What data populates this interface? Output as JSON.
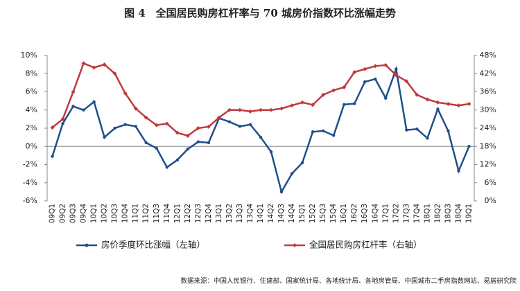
{
  "chart_data": {
    "type": "line",
    "title": "图 4　全国居民购房杠杆率与 70 城房价指数环比涨幅走势",
    "source": "数据来源：中国人民银行、住建部、国家统计局、各地统计局、各地房管局、中国城市二手房指数网站、易居研究院",
    "categories": [
      "09Q1",
      "09Q2",
      "09Q3",
      "09Q4",
      "10Q1",
      "10Q2",
      "10Q3",
      "10Q4",
      "11Q1",
      "11Q2",
      "11Q3",
      "11Q4",
      "12Q1",
      "12Q2",
      "12Q3",
      "12Q4",
      "13Q1",
      "13Q2",
      "13Q3",
      "13Q4",
      "14Q1",
      "14Q2",
      "14Q3",
      "14Q4",
      "15Q1",
      "15Q2",
      "15Q3",
      "15Q4",
      "16Q1",
      "16Q2",
      "16Q3",
      "16Q4",
      "17Q1",
      "17Q2",
      "17Q3",
      "17Q4",
      "18Q1",
      "18Q2",
      "18Q3",
      "18Q4",
      "19Q1"
    ],
    "series": [
      {
        "name": "房价季度环比涨幅（左轴）",
        "color": "#1f4e8c",
        "axis": "y",
        "values": [
          -1.1,
          2.5,
          4.4,
          4.0,
          4.9,
          1.0,
          2.0,
          2.4,
          2.2,
          0.4,
          -0.2,
          -2.3,
          -1.5,
          -0.3,
          0.5,
          0.4,
          3.1,
          2.7,
          2.2,
          2.4,
          1.0,
          -0.6,
          -5.0,
          -3.0,
          -1.8,
          1.6,
          1.7,
          1.2,
          4.6,
          4.7,
          7.1,
          7.4,
          5.3,
          8.5,
          1.8,
          1.9,
          0.9,
          4.1,
          1.7,
          -2.7,
          0.0
        ]
      },
      {
        "name": "全国居民购房杠杆率（右轴）",
        "color": "#c0393b",
        "axis": "y2",
        "values": [
          24.2,
          27,
          36,
          45.4,
          44,
          45,
          42,
          35.5,
          30.5,
          27.5,
          25,
          25.5,
          22.5,
          21.5,
          24,
          24.5,
          27.5,
          30,
          30,
          29.5,
          30,
          30,
          30.5,
          31.5,
          32.5,
          31.7,
          35,
          36.5,
          37.5,
          42.5,
          43.5,
          44.5,
          44.8,
          41.5,
          39.5,
          35,
          33.5,
          32.5,
          32,
          31.5,
          32
        ]
      }
    ],
    "ylim": [
      -6,
      10
    ],
    "yticks": [
      {
        "value": -6,
        "label": "-6%"
      },
      {
        "value": -4,
        "label": "-4%"
      },
      {
        "value": -2,
        "label": "-2%"
      },
      {
        "value": 0,
        "label": "0%"
      },
      {
        "value": 2,
        "label": "2%"
      },
      {
        "value": 4,
        "label": "4%"
      },
      {
        "value": 6,
        "label": "6%"
      },
      {
        "value": 8,
        "label": "8%"
      },
      {
        "value": 10,
        "label": "10%"
      }
    ],
    "y2lim": [
      0,
      48
    ],
    "y2ticks": [
      {
        "value": 0,
        "label": "0%"
      },
      {
        "value": 6,
        "label": "6%"
      },
      {
        "value": 12,
        "label": "12%"
      },
      {
        "value": 18,
        "label": "18%"
      },
      {
        "value": 24,
        "label": "24%"
      },
      {
        "value": 30,
        "label": "30%"
      },
      {
        "value": 36,
        "label": "36%"
      },
      {
        "value": 42,
        "label": "42%"
      },
      {
        "value": 48,
        "label": "48%"
      }
    ],
    "legend": "bottom"
  }
}
